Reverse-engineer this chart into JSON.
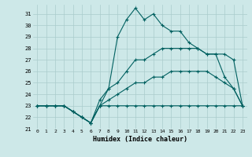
{
  "xlabel": "Humidex (Indice chaleur)",
  "background_color": "#cde8e8",
  "grid_color": "#aacccc",
  "line_color": "#006060",
  "xlim": [
    -0.5,
    23.5
  ],
  "ylim": [
    21,
    31.8
  ],
  "yticks": [
    21,
    22,
    23,
    24,
    25,
    26,
    27,
    28,
    29,
    30,
    31
  ],
  "xticks": [
    0,
    1,
    2,
    3,
    4,
    5,
    6,
    7,
    8,
    9,
    10,
    11,
    12,
    13,
    14,
    15,
    16,
    17,
    18,
    19,
    20,
    21,
    22,
    23
  ],
  "series": [
    {
      "x": [
        0,
        1,
        2,
        3,
        4,
        5,
        6,
        7,
        8,
        9,
        10,
        11,
        12,
        13,
        14,
        15,
        16,
        17,
        18,
        19,
        20,
        21,
        22,
        23
      ],
      "y": [
        23,
        23,
        23,
        23,
        22.5,
        22,
        21.5,
        23,
        24.5,
        29,
        30.5,
        31.5,
        30.5,
        31,
        30,
        29.5,
        29.5,
        28.5,
        28,
        27.5,
        27.5,
        25.5,
        24.5,
        23
      ]
    },
    {
      "x": [
        0,
        1,
        2,
        3,
        4,
        5,
        6,
        7,
        8,
        9,
        10,
        11,
        12,
        13,
        14,
        15,
        16,
        17,
        18,
        19,
        20,
        21,
        22,
        23
      ],
      "y": [
        23,
        23,
        23,
        23,
        22.5,
        22,
        21.5,
        23.5,
        24.5,
        25,
        26,
        27,
        27,
        27.5,
        28,
        28,
        28,
        28,
        28,
        27.5,
        27.5,
        27.5,
        27,
        23
      ]
    },
    {
      "x": [
        0,
        1,
        2,
        3,
        4,
        5,
        6,
        7,
        8,
        9,
        10,
        11,
        12,
        13,
        14,
        15,
        16,
        17,
        18,
        19,
        20,
        21,
        22,
        23
      ],
      "y": [
        23,
        23,
        23,
        23,
        22.5,
        22,
        21.5,
        23,
        23.5,
        24,
        24.5,
        25,
        25,
        25.5,
        25.5,
        26,
        26,
        26,
        26,
        26,
        25.5,
        25,
        24.5,
        23
      ]
    },
    {
      "x": [
        0,
        1,
        2,
        3,
        4,
        5,
        6,
        7,
        8,
        9,
        10,
        11,
        12,
        13,
        14,
        15,
        16,
        17,
        18,
        19,
        20,
        21,
        22,
        23
      ],
      "y": [
        23,
        23,
        23,
        23,
        22.5,
        22,
        21.5,
        23,
        23,
        23,
        23,
        23,
        23,
        23,
        23,
        23,
        23,
        23,
        23,
        23,
        23,
        23,
        23,
        23
      ]
    }
  ]
}
